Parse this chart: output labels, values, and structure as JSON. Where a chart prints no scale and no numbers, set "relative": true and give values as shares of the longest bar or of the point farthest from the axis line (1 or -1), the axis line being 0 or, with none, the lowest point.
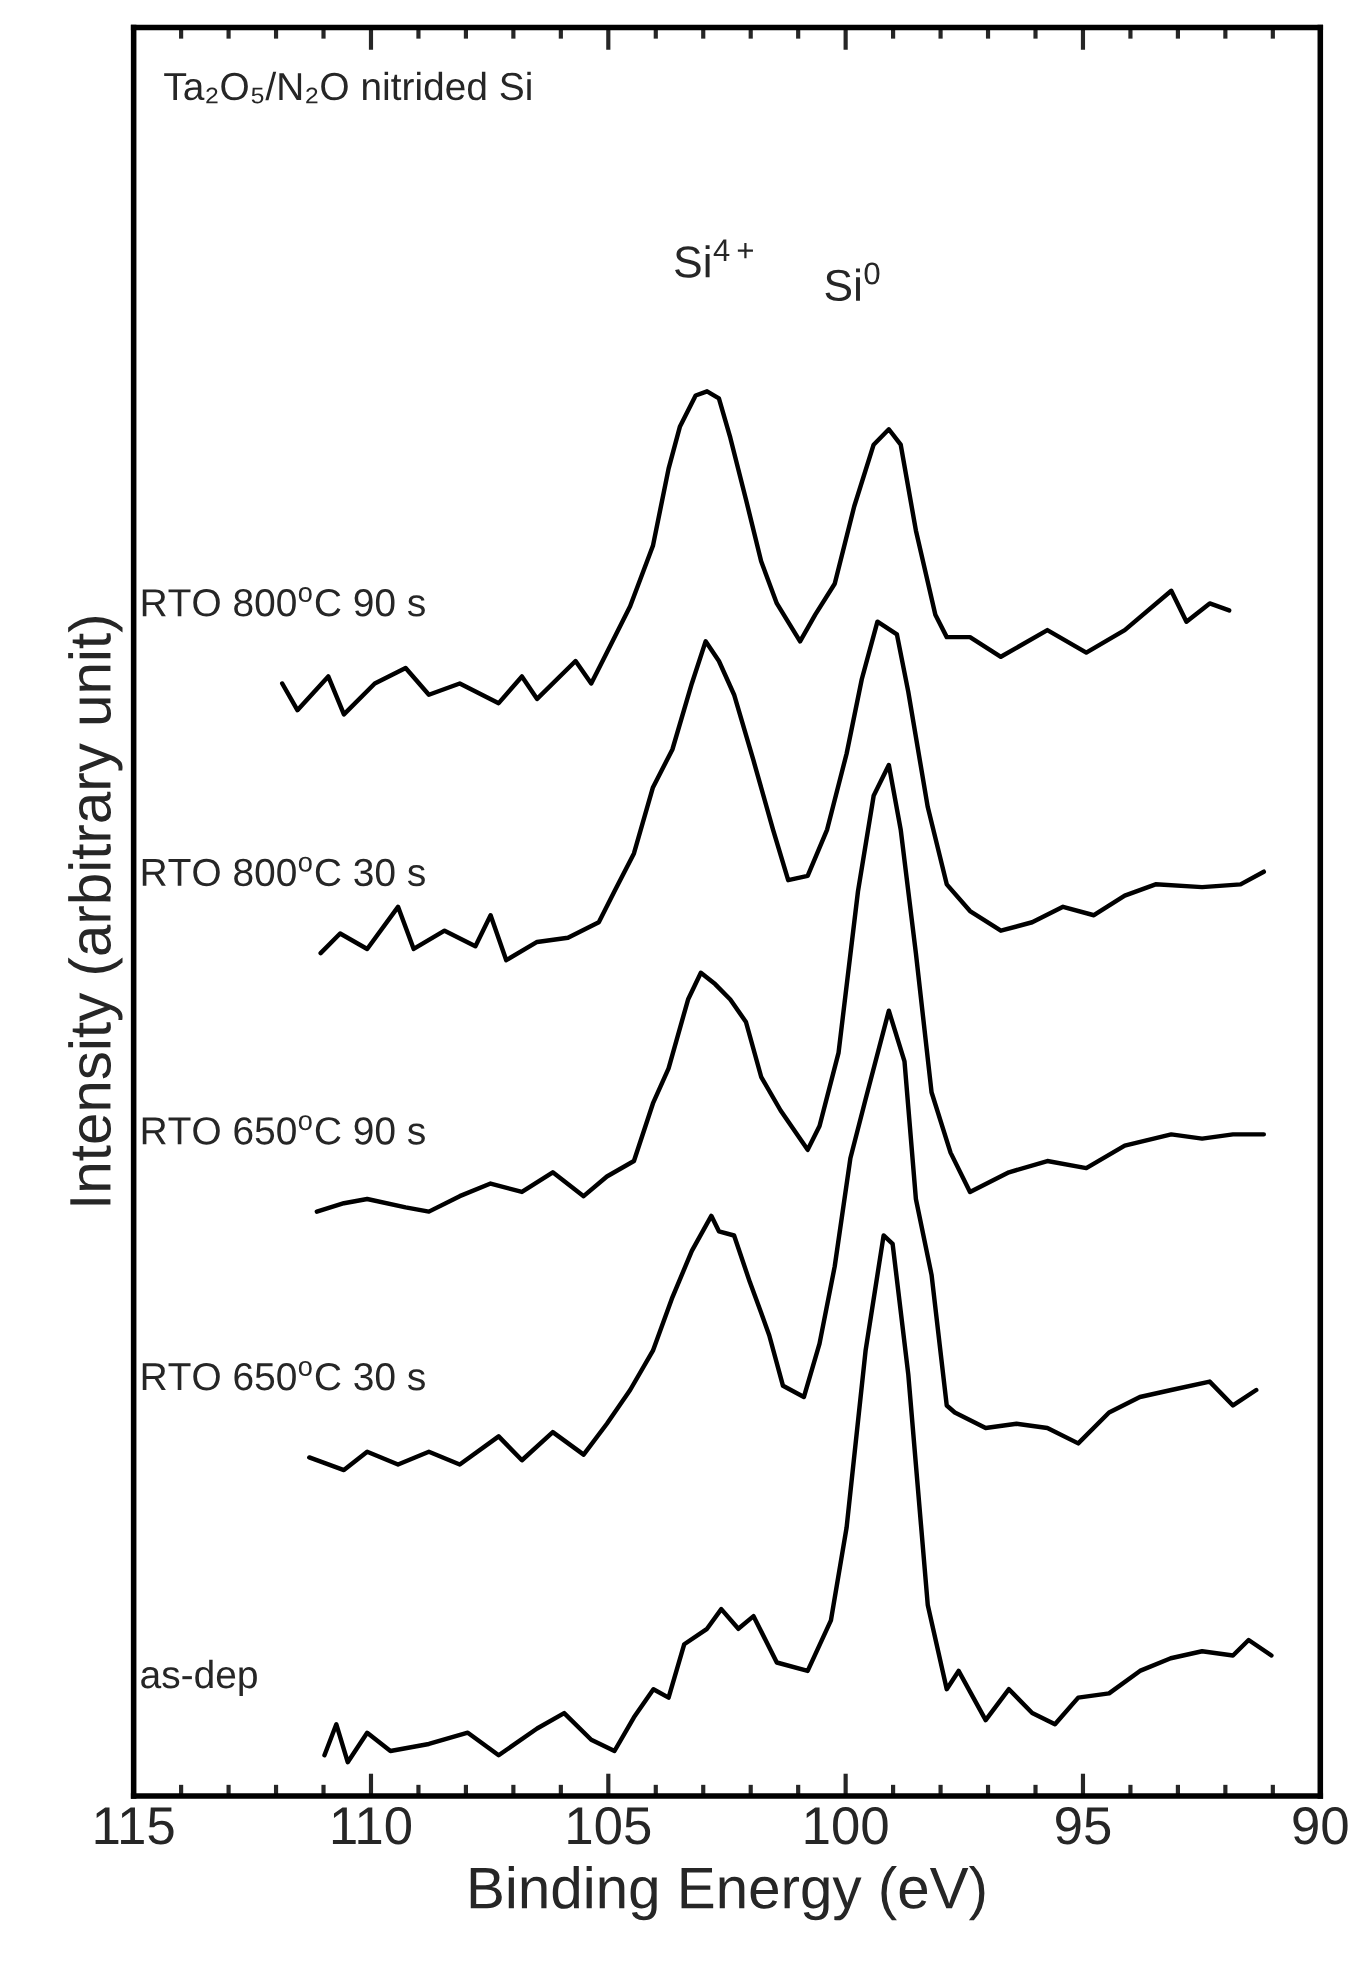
{
  "chart_data": {
    "type": "line",
    "relative": true,
    "title": "Ta₂O₅/N₂O nitrided Si",
    "xlabel": "Binding Energy (eV)",
    "ylabel": "Intensity (arbitrary unit)",
    "xlim": [
      115,
      90
    ],
    "xticks": [
      115,
      110,
      105,
      100,
      95,
      90
    ],
    "grid": false,
    "legend": false,
    "marker": "none",
    "line_style": "solid",
    "annotations": [
      "Si$^{4+}$",
      "Si$^{0}$"
    ],
    "series": [
      {
        "name": "as-dep",
        "color": "#000000",
        "x": [
          110.98,
          110.73,
          110.49,
          110.08,
          109.59,
          108.78,
          107.96,
          107.31,
          106.5,
          105.93,
          105.36,
          104.87,
          104.46,
          104.05,
          103.73,
          103.4,
          102.92,
          102.62,
          102.26,
          101.94,
          101.45,
          100.8,
          100.31,
          99.98,
          99.58,
          99.2,
          99.01,
          98.68,
          98.27,
          97.87,
          97.62,
          97.05,
          96.56,
          96.07,
          95.59,
          95.1,
          94.45,
          93.8,
          93.15,
          92.49,
          91.84,
          91.51,
          91.03
        ],
        "values": [
          0.029,
          0.051,
          0.024,
          0.045,
          0.032,
          0.037,
          0.045,
          0.029,
          0.048,
          0.059,
          0.04,
          0.032,
          0.056,
          0.076,
          0.07,
          0.108,
          0.119,
          0.133,
          0.119,
          0.128,
          0.095,
          0.089,
          0.125,
          0.191,
          0.317,
          0.399,
          0.393,
          0.3,
          0.136,
          0.076,
          0.089,
          0.054,
          0.076,
          0.059,
          0.051,
          0.07,
          0.073,
          0.089,
          0.098,
          0.103,
          0.1,
          0.111,
          0.1
        ]
      },
      {
        "name": "RTO 650$^{o}$C 30 s",
        "color": "#000000",
        "x": [
          111.3,
          110.57,
          110.08,
          109.43,
          108.78,
          108.13,
          107.31,
          106.82,
          106.17,
          105.52,
          105.03,
          104.54,
          104.06,
          103.65,
          103.24,
          102.83,
          102.67,
          102.35,
          102.02,
          101.78,
          101.61,
          101.32,
          100.88,
          100.55,
          100.23,
          99.9,
          99.58,
          99.09,
          98.76,
          98.52,
          98.19,
          97.87,
          97.7,
          97.05,
          96.4,
          95.75,
          95.1,
          94.45,
          93.8,
          93.14,
          92.33,
          91.84,
          91.35
        ],
        "values": [
          0.241,
          0.232,
          0.245,
          0.236,
          0.245,
          0.236,
          0.256,
          0.239,
          0.259,
          0.243,
          0.265,
          0.289,
          0.317,
          0.355,
          0.388,
          0.413,
          0.402,
          0.399,
          0.366,
          0.344,
          0.328,
          0.292,
          0.284,
          0.322,
          0.377,
          0.454,
          0.496,
          0.559,
          0.523,
          0.425,
          0.371,
          0.278,
          0.273,
          0.262,
          0.265,
          0.262,
          0.251,
          0.273,
          0.284,
          0.289,
          0.295,
          0.278,
          0.289
        ]
      },
      {
        "name": "RTO 650$^{o}$C 90 s",
        "color": "#000000",
        "x": [
          111.14,
          110.57,
          110.08,
          109.27,
          108.78,
          108.13,
          107.48,
          106.82,
          106.17,
          105.52,
          105.03,
          104.46,
          104.06,
          103.73,
          103.32,
          103.05,
          102.75,
          102.43,
          102.1,
          101.78,
          101.37,
          100.8,
          100.55,
          100.15,
          99.74,
          99.41,
          99.09,
          98.84,
          98.52,
          98.19,
          97.79,
          97.38,
          96.56,
          95.75,
          94.93,
          94.12,
          93.14,
          92.49,
          91.84,
          91.19
        ],
        "values": [
          0.416,
          0.422,
          0.425,
          0.419,
          0.416,
          0.427,
          0.436,
          0.43,
          0.444,
          0.427,
          0.441,
          0.452,
          0.493,
          0.518,
          0.567,
          0.586,
          0.578,
          0.567,
          0.551,
          0.512,
          0.488,
          0.46,
          0.477,
          0.529,
          0.644,
          0.712,
          0.734,
          0.688,
          0.6,
          0.501,
          0.458,
          0.43,
          0.444,
          0.452,
          0.447,
          0.463,
          0.471,
          0.468,
          0.471,
          0.471
        ]
      },
      {
        "name": "RTO 800$^{o}$C 30 s",
        "color": "#000000",
        "x": [
          111.06,
          110.65,
          110.08,
          109.43,
          109.1,
          108.45,
          107.8,
          107.48,
          107.15,
          106.5,
          105.85,
          105.2,
          104.87,
          104.46,
          104.06,
          103.65,
          103.24,
          102.95,
          102.67,
          102.35,
          101.94,
          101.53,
          101.21,
          100.8,
          100.39,
          99.98,
          99.66,
          99.33,
          98.92,
          98.68,
          98.27,
          97.87,
          97.38,
          96.73,
          96.07,
          95.42,
          94.77,
          94.12,
          93.47,
          92.49,
          91.68,
          91.19
        ],
        "values": [
          0.6,
          0.614,
          0.603,
          0.633,
          0.603,
          0.616,
          0.605,
          0.627,
          0.595,
          0.608,
          0.611,
          0.622,
          0.644,
          0.671,
          0.718,
          0.745,
          0.792,
          0.822,
          0.808,
          0.784,
          0.737,
          0.688,
          0.652,
          0.655,
          0.688,
          0.742,
          0.795,
          0.836,
          0.827,
          0.786,
          0.704,
          0.649,
          0.63,
          0.616,
          0.622,
          0.633,
          0.627,
          0.641,
          0.649,
          0.647,
          0.649,
          0.658
        ]
      },
      {
        "name": "RTO 800$^{o}$C 90 s",
        "color": "#000000",
        "x": [
          111.87,
          111.55,
          110.9,
          110.57,
          109.92,
          109.27,
          108.78,
          108.13,
          107.31,
          106.82,
          106.5,
          105.69,
          105.36,
          105.03,
          104.54,
          104.06,
          103.73,
          103.49,
          103.16,
          102.92,
          102.67,
          102.43,
          102.1,
          101.78,
          101.45,
          100.96,
          100.64,
          100.23,
          99.82,
          99.41,
          99.09,
          98.84,
          98.52,
          98.11,
          97.87,
          97.38,
          96.73,
          95.75,
          94.93,
          94.12,
          93.14,
          92.82,
          92.33,
          91.92
        ],
        "values": [
          0.792,
          0.773,
          0.797,
          0.77,
          0.792,
          0.803,
          0.784,
          0.792,
          0.778,
          0.797,
          0.781,
          0.808,
          0.792,
          0.814,
          0.847,
          0.89,
          0.945,
          0.975,
          0.997,
          1.0,
          0.995,
          0.967,
          0.923,
          0.879,
          0.849,
          0.822,
          0.841,
          0.863,
          0.918,
          0.962,
          0.973,
          0.962,
          0.901,
          0.841,
          0.825,
          0.825,
          0.811,
          0.83,
          0.814,
          0.83,
          0.858,
          0.836,
          0.849,
          0.844
        ]
      }
    ]
  }
}
